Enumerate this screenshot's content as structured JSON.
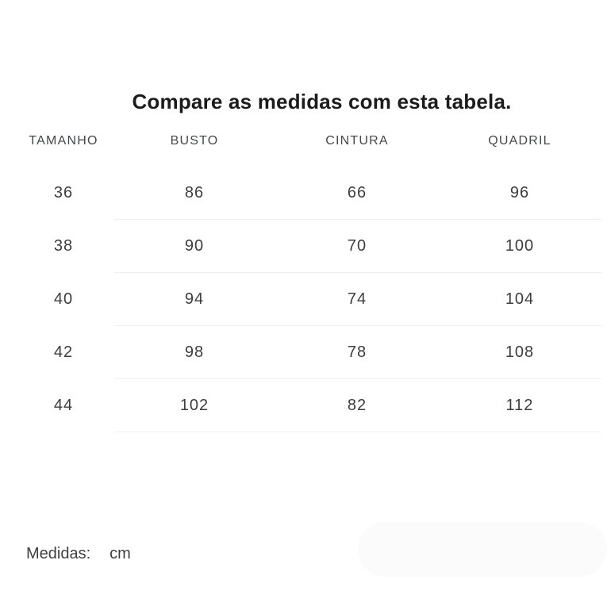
{
  "title": "Compare as medidas com esta tabela.",
  "table": {
    "headers": [
      "TAMANHO",
      "BUSTO",
      "CINTURA",
      "QUADRIL"
    ],
    "rows": [
      [
        "36",
        "86",
        "66",
        "96"
      ],
      [
        "38",
        "90",
        "70",
        "100"
      ],
      [
        "40",
        "94",
        "74",
        "104"
      ],
      [
        "42",
        "98",
        "78",
        "108"
      ],
      [
        "44",
        "102",
        "82",
        "112"
      ]
    ]
  },
  "footer": {
    "label": "Medidas:",
    "unit": "cm"
  },
  "colors": {
    "background": "#ffffff",
    "title_text": "#1c1c1c",
    "header_text": "#45484b",
    "cell_text": "#3d3d3d",
    "divider": "#efefef",
    "pill": "#fbfbfb"
  },
  "chart_data": {
    "type": "table",
    "title": "Compare as medidas com esta tabela.",
    "columns": [
      "TAMANHO",
      "BUSTO",
      "CINTURA",
      "QUADRIL"
    ],
    "rows": [
      [
        36,
        86,
        66,
        96
      ],
      [
        38,
        90,
        70,
        100
      ],
      [
        40,
        94,
        74,
        104
      ],
      [
        42,
        98,
        78,
        108
      ],
      [
        44,
        102,
        82,
        112
      ]
    ],
    "unit": "cm"
  }
}
